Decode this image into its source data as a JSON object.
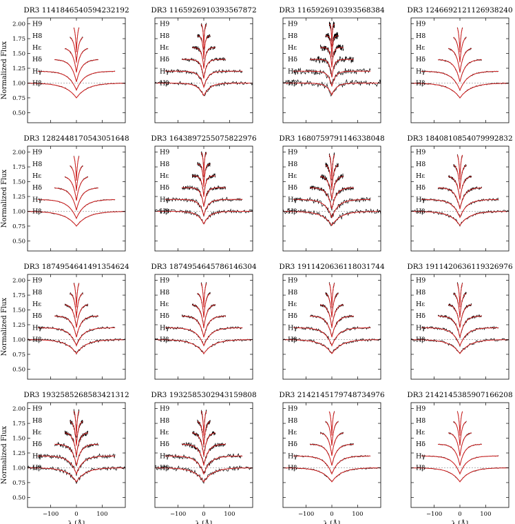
{
  "figure": {
    "ylabel": "Normalized Flux",
    "xlabel": "λ [Å]",
    "xticks": [
      -100,
      0,
      100
    ],
    "yticks": [
      0.5,
      0.75,
      1.0,
      1.25,
      1.5,
      1.75,
      2.0
    ],
    "ytick_labels": [
      "0.50",
      "0.75",
      "1.00",
      "1.25",
      "1.50",
      "1.75",
      "2.00"
    ],
    "xlim": [
      -190,
      190
    ],
    "ylim": [
      0.33,
      2.1
    ],
    "data_color": "#000000",
    "model_color": "#d62020",
    "reference_line_color": "#888888"
  },
  "chart_data": [
    {
      "type": "line",
      "title": "DR3 1141846540594232192"
    },
    {
      "type": "line",
      "title": "DR3 1165926910393567872"
    },
    {
      "type": "line",
      "title": "DR3 1165926910393568384"
    },
    {
      "type": "line",
      "title": "DR3 1246692121126938240"
    },
    {
      "type": "line",
      "title": "DR3 1282448170543051648"
    },
    {
      "type": "line",
      "title": "DR3 1643897255075822976"
    },
    {
      "type": "line",
      "title": "DR3 1680759791146338048"
    },
    {
      "type": "line",
      "title": "DR3 1840810854079992832"
    },
    {
      "type": "line",
      "title": "DR3 1874954641491354624"
    },
    {
      "type": "line",
      "title": "DR3 1874954645786146304"
    },
    {
      "type": "line",
      "title": "DR3 1911420636118031744"
    },
    {
      "type": "line",
      "title": "DR3 1911420636119326976"
    },
    {
      "type": "line",
      "title": "DR3 1932585268583421312"
    },
    {
      "type": "line",
      "title": "DR3 1932585302943159808"
    },
    {
      "type": "line",
      "title": "DR3 2142145179748734976"
    },
    {
      "type": "line",
      "title": "DR3 2142145385907166208"
    }
  ],
  "balmer_lines": [
    {
      "label": "H9",
      "offset": 2.0,
      "halfwidth": 10
    },
    {
      "label": "H8",
      "offset": 1.8,
      "halfwidth": 25
    },
    {
      "label": "Hε",
      "offset": 1.6,
      "halfwidth": 45
    },
    {
      "label": "Hδ",
      "offset": 1.4,
      "halfwidth": 85
    },
    {
      "label": "Hγ",
      "offset": 1.2,
      "halfwidth": 150
    },
    {
      "label": "Hβ",
      "offset": 1.0,
      "halfwidth": 190
    }
  ]
}
